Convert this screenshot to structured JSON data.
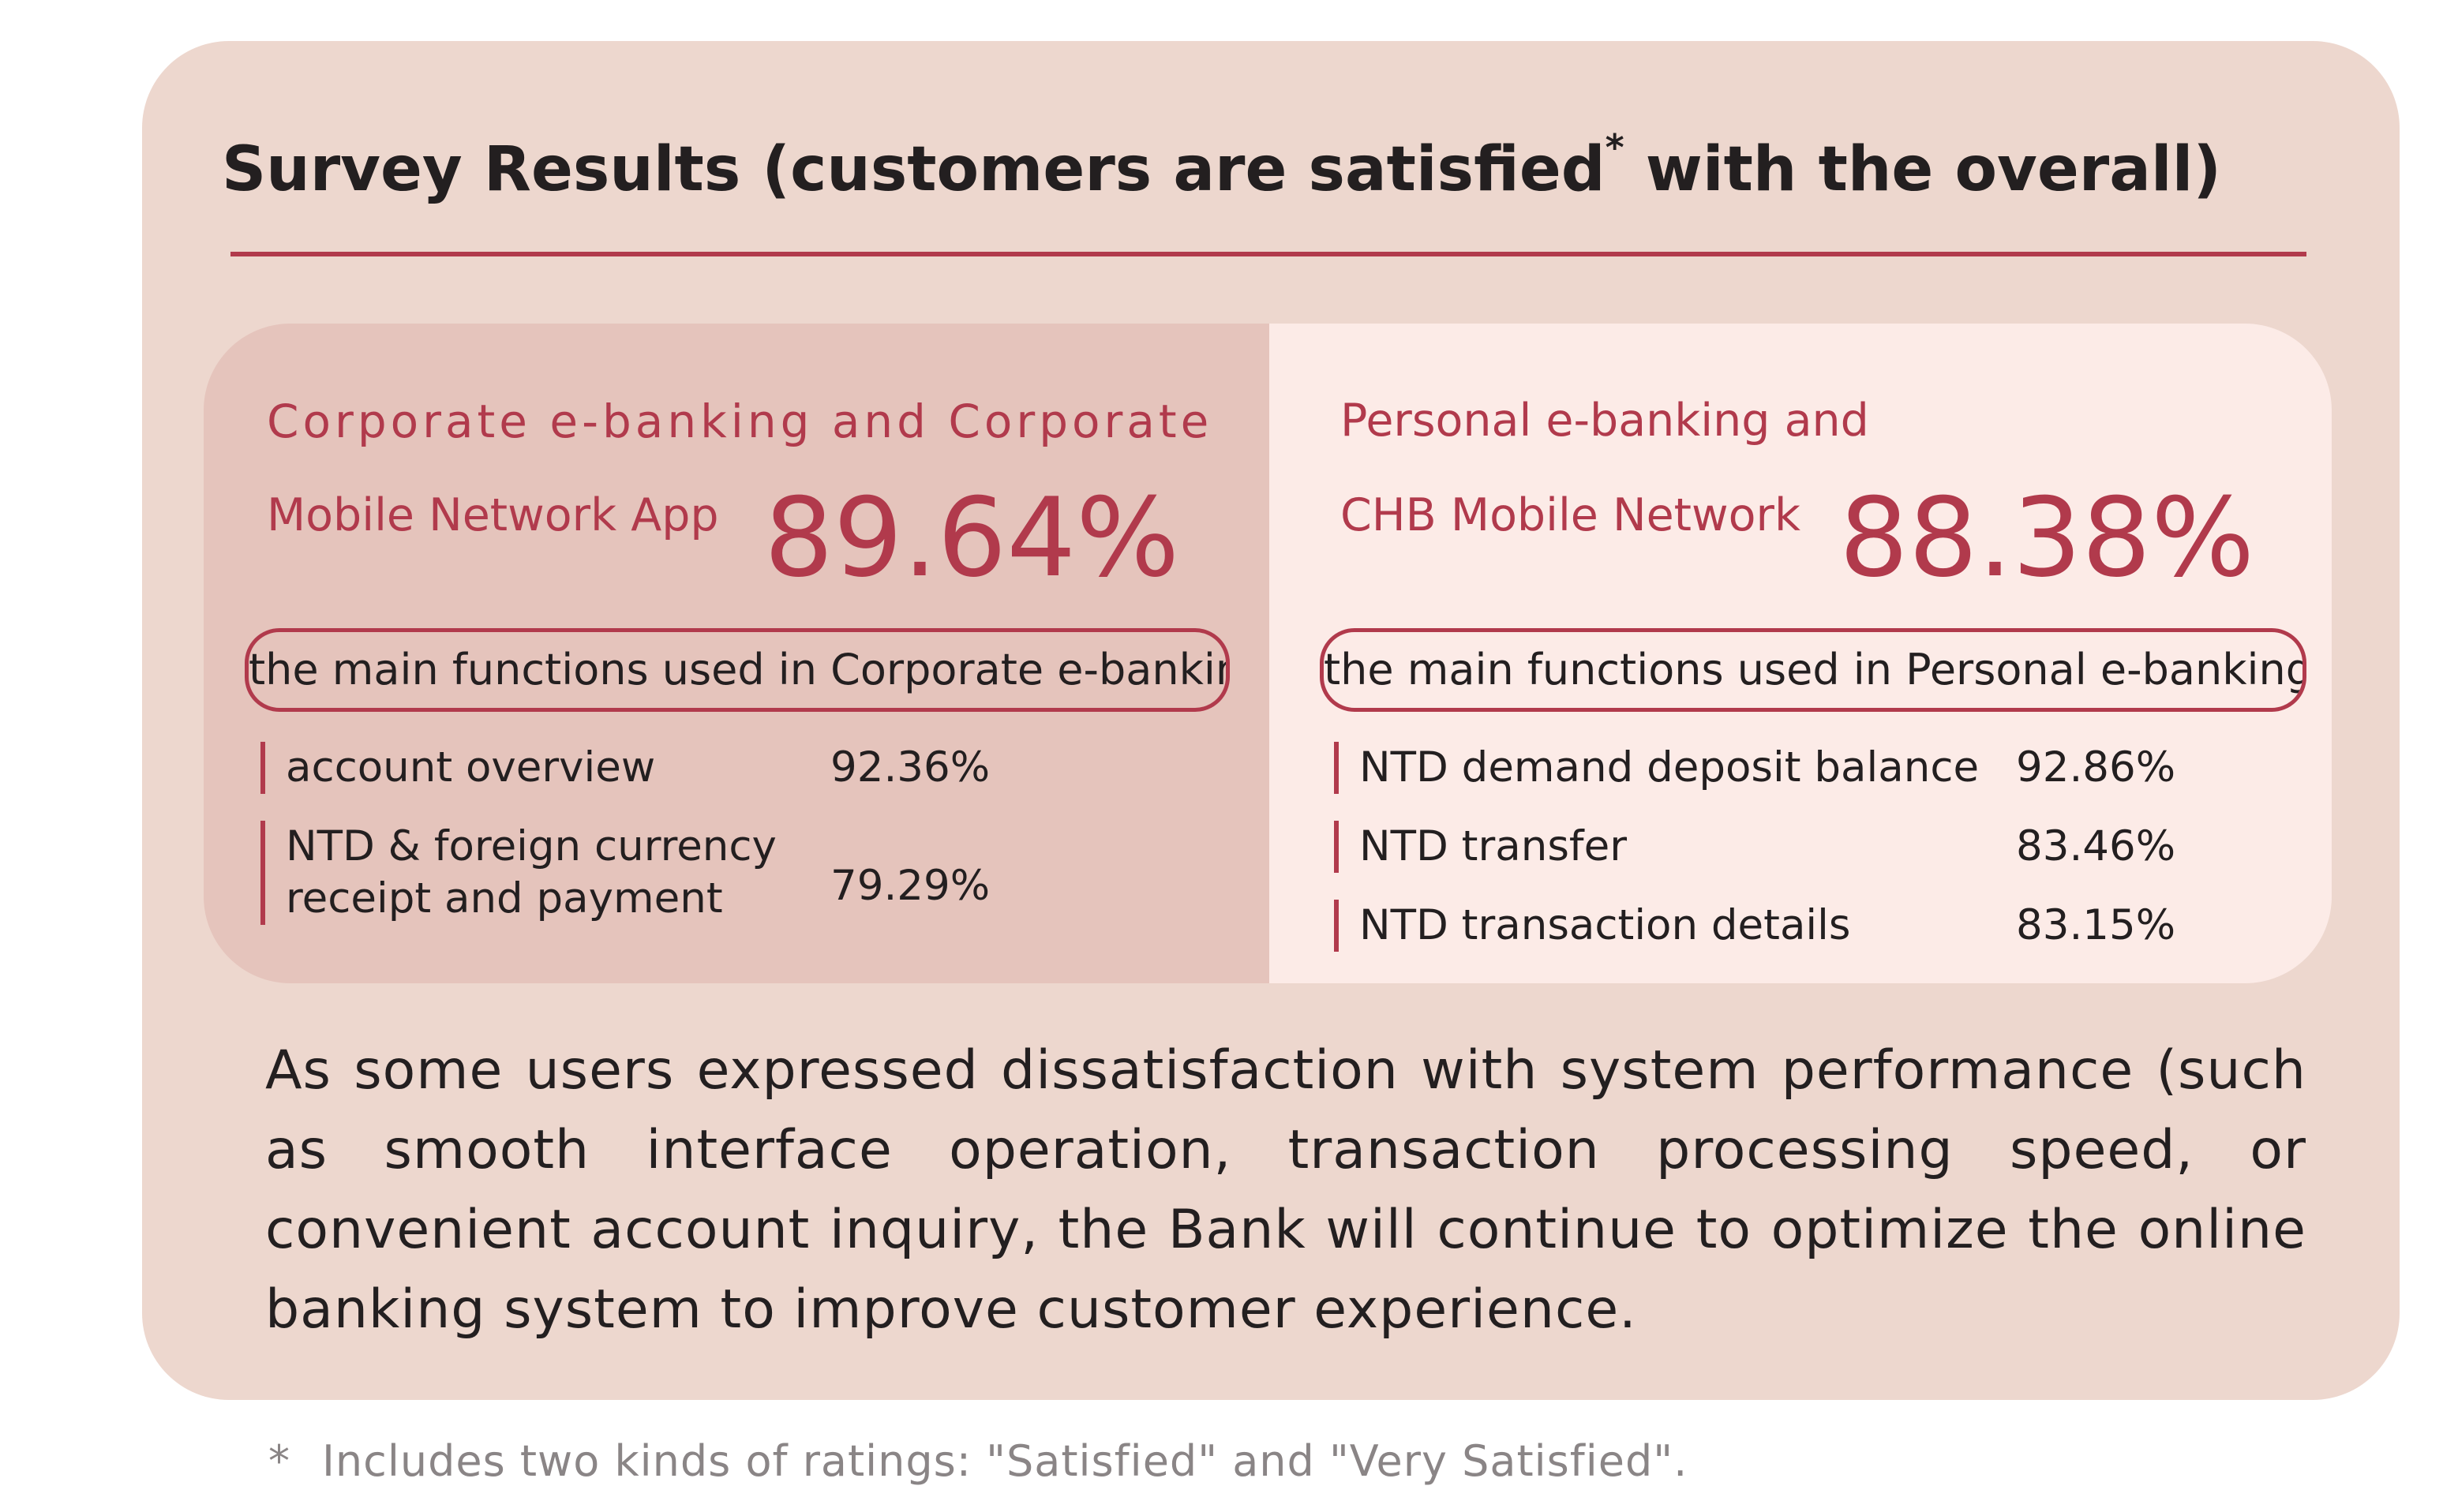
{
  "title": {
    "text": "Survey Results (customers are satisfied",
    "asterisk": "*",
    "suffix": " with the overall)"
  },
  "corporate": {
    "line1": "Corporate e-banking and Corporate",
    "line2": "Mobile Network App",
    "percentage": "89.64%",
    "functions_label": "the main functions used in Corporate e-banking",
    "items": [
      {
        "label": "account overview",
        "value": "92.36%"
      },
      {
        "label_line1": "NTD & foreign currency",
        "label_line2": "receipt and payment",
        "value": "79.29%"
      }
    ]
  },
  "personal": {
    "line1": "Personal e-banking and",
    "line2": "CHB Mobile Network",
    "percentage": "88.38%",
    "functions_label": "the main functions used in Personal e-banking",
    "items": [
      {
        "label": "NTD demand deposit balance",
        "value": "92.86%"
      },
      {
        "label": "NTD transfer",
        "value": "83.46%"
      },
      {
        "label": "NTD transaction details",
        "value": "83.15%"
      }
    ]
  },
  "body_text": "As some users expressed dissatisfaction with system performance (such as smooth interface operation, transaction processing speed, or convenient account inquiry, the Bank will continue to optimize the online banking system to improve customer experience.",
  "footnote": {
    "marker": "*",
    "text": "Includes two kinds of ratings: \"Satisfied\" and \"Very Satisfied\"."
  },
  "colors": {
    "card_bg": "#edd7ce",
    "left_panel_bg": "#e5c4bc",
    "right_panel_bg": "#fcebe7",
    "accent": "#b13a4c",
    "text": "#231f20",
    "footnote": "#8a8586"
  }
}
